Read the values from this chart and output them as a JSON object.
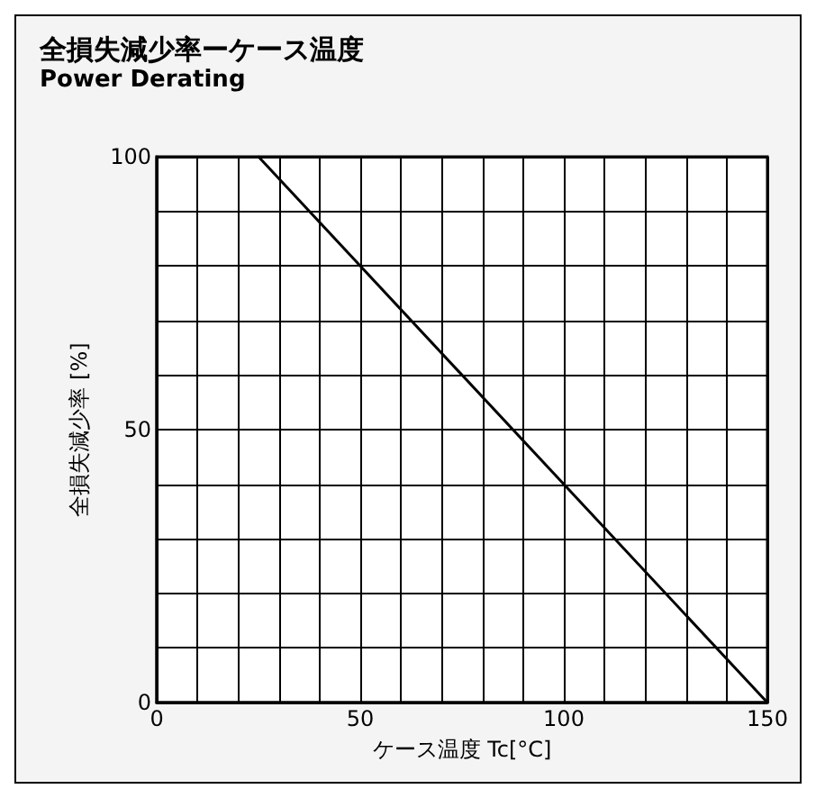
{
  "chart_data": {
    "type": "line",
    "title": "全損失減少率ーケース温度",
    "subtitle": "Power Derating",
    "xlabel": "ケース温度 Tc[°C]",
    "ylabel": "全損失減少率 [%]",
    "x": [
      25,
      150
    ],
    "series": [
      {
        "color": "#000000",
        "values": [
          100,
          0
        ]
      }
    ],
    "xlim": [
      0,
      150
    ],
    "ylim": [
      0,
      100
    ],
    "xticks": [
      0,
      {
        "value": 10,
        "label": null
      },
      {
        "value": 20,
        "label": null
      },
      {
        "value": 30,
        "label": null
      },
      {
        "value": 40,
        "label": null
      },
      50,
      {
        "value": 60,
        "label": null
      },
      {
        "value": 70,
        "label": null
      },
      {
        "value": 80,
        "label": null
      },
      {
        "value": 90,
        "label": null
      },
      100,
      {
        "value": 110,
        "label": null
      },
      {
        "value": 120,
        "label": null
      },
      {
        "value": 130,
        "label": null
      },
      {
        "value": 140,
        "label": null
      },
      150
    ],
    "yticks": [
      0,
      {
        "value": 10,
        "label": null
      },
      {
        "value": 20,
        "label": null
      },
      {
        "value": 30,
        "label": null
      },
      {
        "value": 40,
        "label": null
      },
      50,
      {
        "value": 60,
        "label": null
      },
      {
        "value": 70,
        "label": null
      },
      {
        "value": 80,
        "label": null
      },
      {
        "value": 90,
        "label": null
      },
      100
    ],
    "grid": true,
    "marker": "none",
    "line_style": "solid"
  }
}
